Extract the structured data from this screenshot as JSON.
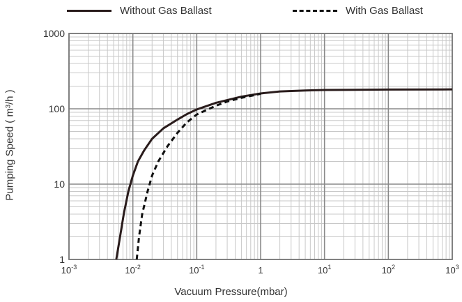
{
  "chart_data": {
    "type": "line",
    "xlabel": "Vacuum Pressure(mbar)",
    "ylabel": "Pumping Speed ( m³/h )",
    "x_scale": "log",
    "y_scale": "log",
    "xlim": [
      0.001,
      1000
    ],
    "ylim": [
      1,
      1000
    ],
    "grid": true,
    "legend_position": "top",
    "x_ticks": [
      {
        "value": 0.001,
        "base": "10",
        "exp": "-3"
      },
      {
        "value": 0.01,
        "base": "10",
        "exp": "-2"
      },
      {
        "value": 0.1,
        "base": "10",
        "exp": "-1"
      },
      {
        "value": 1,
        "base": "1",
        "exp": ""
      },
      {
        "value": 10,
        "base": "10",
        "exp": "1"
      },
      {
        "value": 100,
        "base": "10",
        "exp": "2"
      },
      {
        "value": 1000,
        "base": "10",
        "exp": "3"
      }
    ],
    "y_ticks": [
      {
        "value": 1,
        "label": "1"
      },
      {
        "value": 10,
        "label": "10"
      },
      {
        "value": 100,
        "label": "100"
      },
      {
        "value": 1000,
        "label": "1000"
      }
    ],
    "series": [
      {
        "name": "Without Gas Ballast",
        "style": "solid",
        "color": "#2a1c1c",
        "points": [
          [
            0.0055,
            1
          ],
          [
            0.0063,
            2
          ],
          [
            0.0072,
            4
          ],
          [
            0.0085,
            8
          ],
          [
            0.01,
            13
          ],
          [
            0.012,
            20
          ],
          [
            0.015,
            28
          ],
          [
            0.02,
            40
          ],
          [
            0.03,
            55
          ],
          [
            0.05,
            72
          ],
          [
            0.07,
            85
          ],
          [
            0.1,
            98
          ],
          [
            0.2,
            120
          ],
          [
            0.5,
            145
          ],
          [
            1,
            160
          ],
          [
            2,
            170
          ],
          [
            5,
            175
          ],
          [
            10,
            178
          ],
          [
            100,
            180
          ],
          [
            1000,
            181
          ]
        ]
      },
      {
        "name": "With Gas Ballast",
        "style": "dashed",
        "color": "#111111",
        "points": [
          [
            0.0115,
            1
          ],
          [
            0.0125,
            2
          ],
          [
            0.014,
            4
          ],
          [
            0.017,
            8
          ],
          [
            0.02,
            13
          ],
          [
            0.025,
            20
          ],
          [
            0.035,
            32
          ],
          [
            0.05,
            48
          ],
          [
            0.07,
            66
          ],
          [
            0.1,
            84
          ],
          [
            0.2,
            110
          ],
          [
            0.3,
            125
          ],
          [
            0.5,
            140
          ],
          [
            1,
            158
          ]
        ]
      }
    ]
  }
}
